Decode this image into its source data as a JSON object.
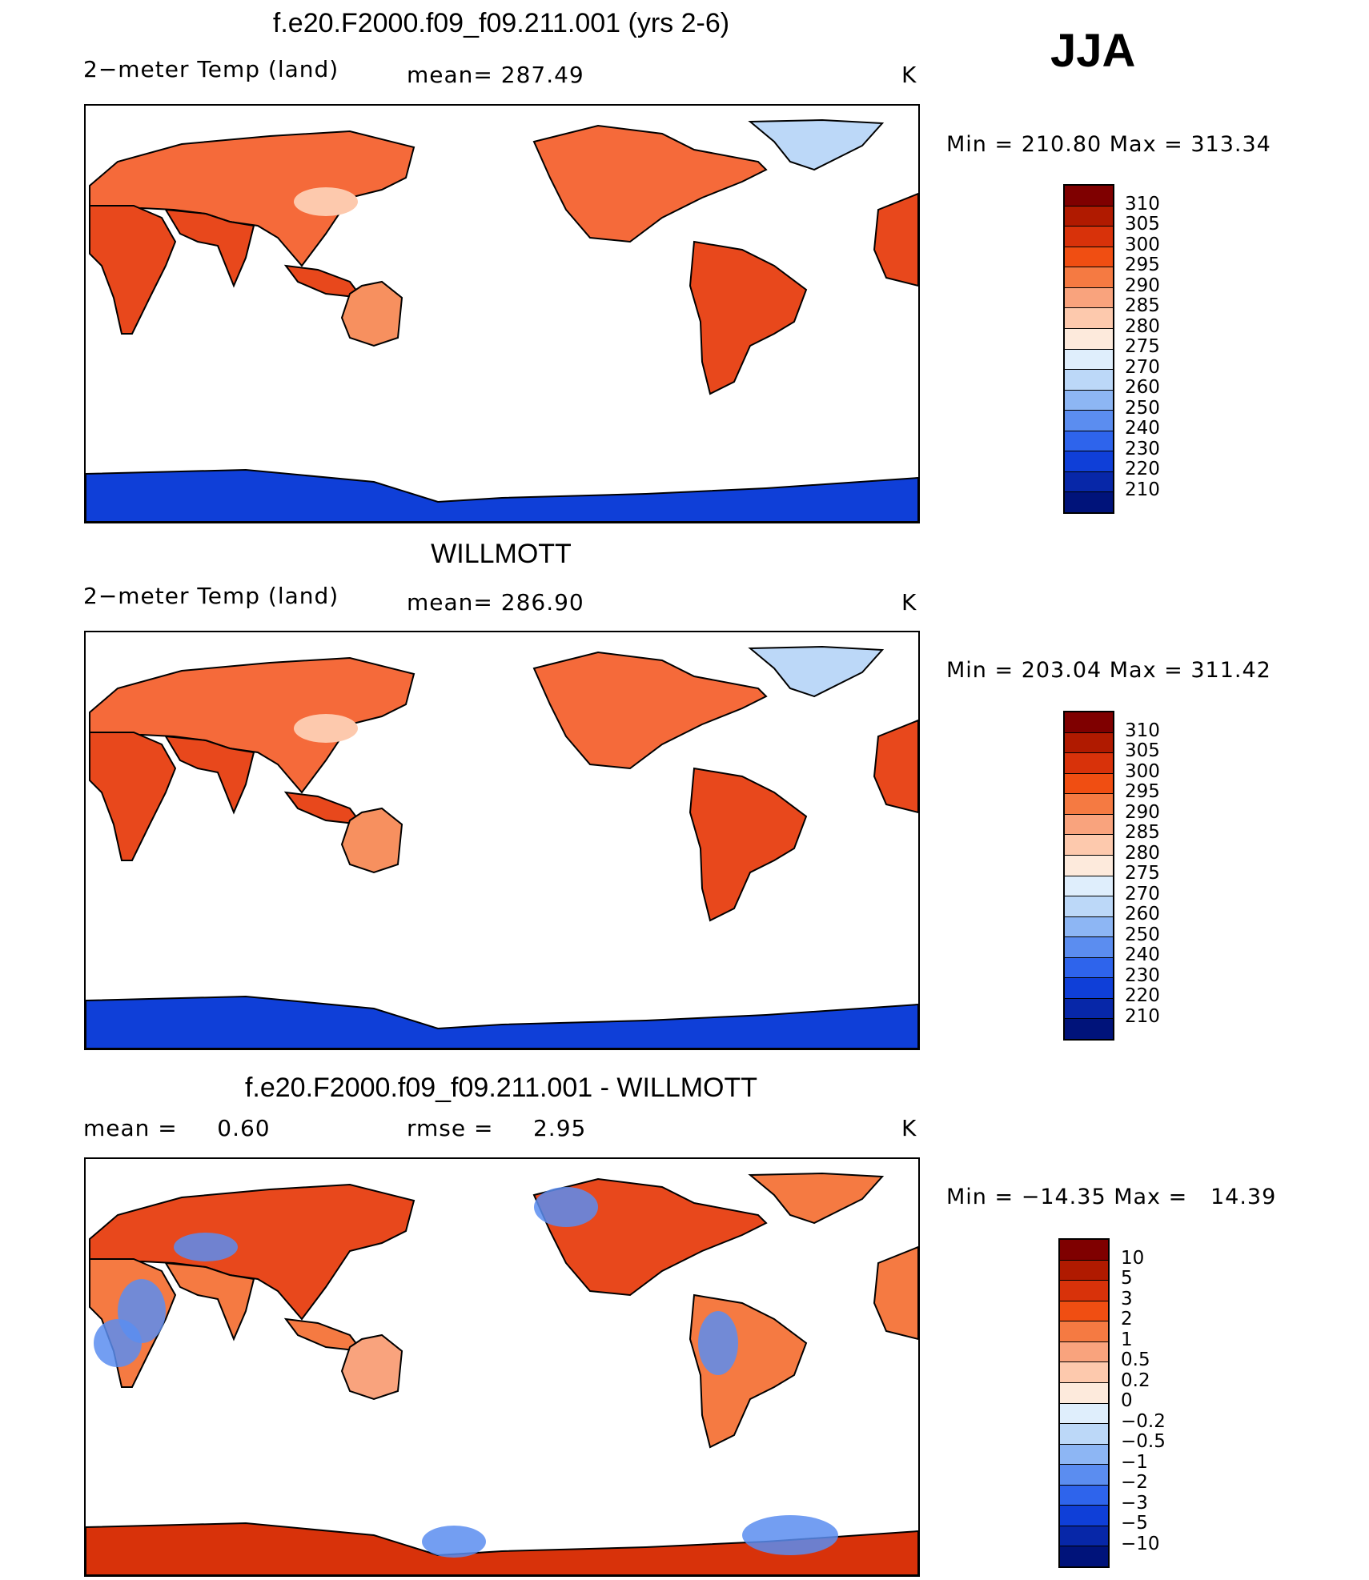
{
  "season": "JJA",
  "panels": [
    {
      "title": "f.e20.F2000.f09_f09.211.001 (yrs 2-6)",
      "left": "2−meter Temp (land)",
      "middle": "mean= 287.49",
      "units": "K",
      "minmax": "Min = 210.80 Max = 313.34",
      "scheme": "abs",
      "colorbar": {
        "labels": [
          "310",
          "305",
          "300",
          "295",
          "290",
          "285",
          "280",
          "275",
          "270",
          "260",
          "250",
          "240",
          "230",
          "220",
          "210"
        ],
        "colors": [
          "#7f0000",
          "#b01a00",
          "#d8320a",
          "#f04e12",
          "#f57a42",
          "#f9a37d",
          "#fdc9ad",
          "#fdeadc",
          "#dfeefc",
          "#bcd8f8",
          "#8db6f4",
          "#5b8df0",
          "#2e64ec",
          "#0f3fd8",
          "#0727a8",
          "#00137a"
        ]
      }
    },
    {
      "title": "WILLMOTT",
      "left": "2−meter Temp (land)",
      "middle": "mean= 286.90",
      "units": "K",
      "minmax": "Min = 203.04 Max = 311.42",
      "scheme": "abs",
      "colorbar": {
        "labels": [
          "310",
          "305",
          "300",
          "295",
          "290",
          "285",
          "280",
          "275",
          "270",
          "260",
          "250",
          "240",
          "230",
          "220",
          "210"
        ],
        "colors": [
          "#7f0000",
          "#b01a00",
          "#d8320a",
          "#f04e12",
          "#f57a42",
          "#f9a37d",
          "#fdc9ad",
          "#fdeadc",
          "#dfeefc",
          "#bcd8f8",
          "#8db6f4",
          "#5b8df0",
          "#2e64ec",
          "#0f3fd8",
          "#0727a8",
          "#00137a"
        ]
      }
    },
    {
      "title": "f.e20.F2000.f09_f09.211.001 - WILLMOTT",
      "left": "mean =     0.60",
      "middle": "rmse =     2.95",
      "units": "K",
      "minmax": "Min = −14.35 Max =   14.39",
      "scheme": "diff",
      "colorbar": {
        "labels": [
          "10",
          "5",
          "3",
          "2",
          "1",
          "0.5",
          "0.2",
          "0",
          "−0.2",
          "−0.5",
          "−1",
          "−2",
          "−3",
          "−5",
          "−10"
        ],
        "colors": [
          "#7f0000",
          "#b01a00",
          "#d8320a",
          "#f04e12",
          "#f57a42",
          "#f9a37d",
          "#fdc9ad",
          "#fdeadc",
          "#dfeefc",
          "#bcd8f8",
          "#8db6f4",
          "#5b8df0",
          "#2e64ec",
          "#0f3fd8",
          "#0727a8",
          "#00137a"
        ]
      }
    }
  ]
}
